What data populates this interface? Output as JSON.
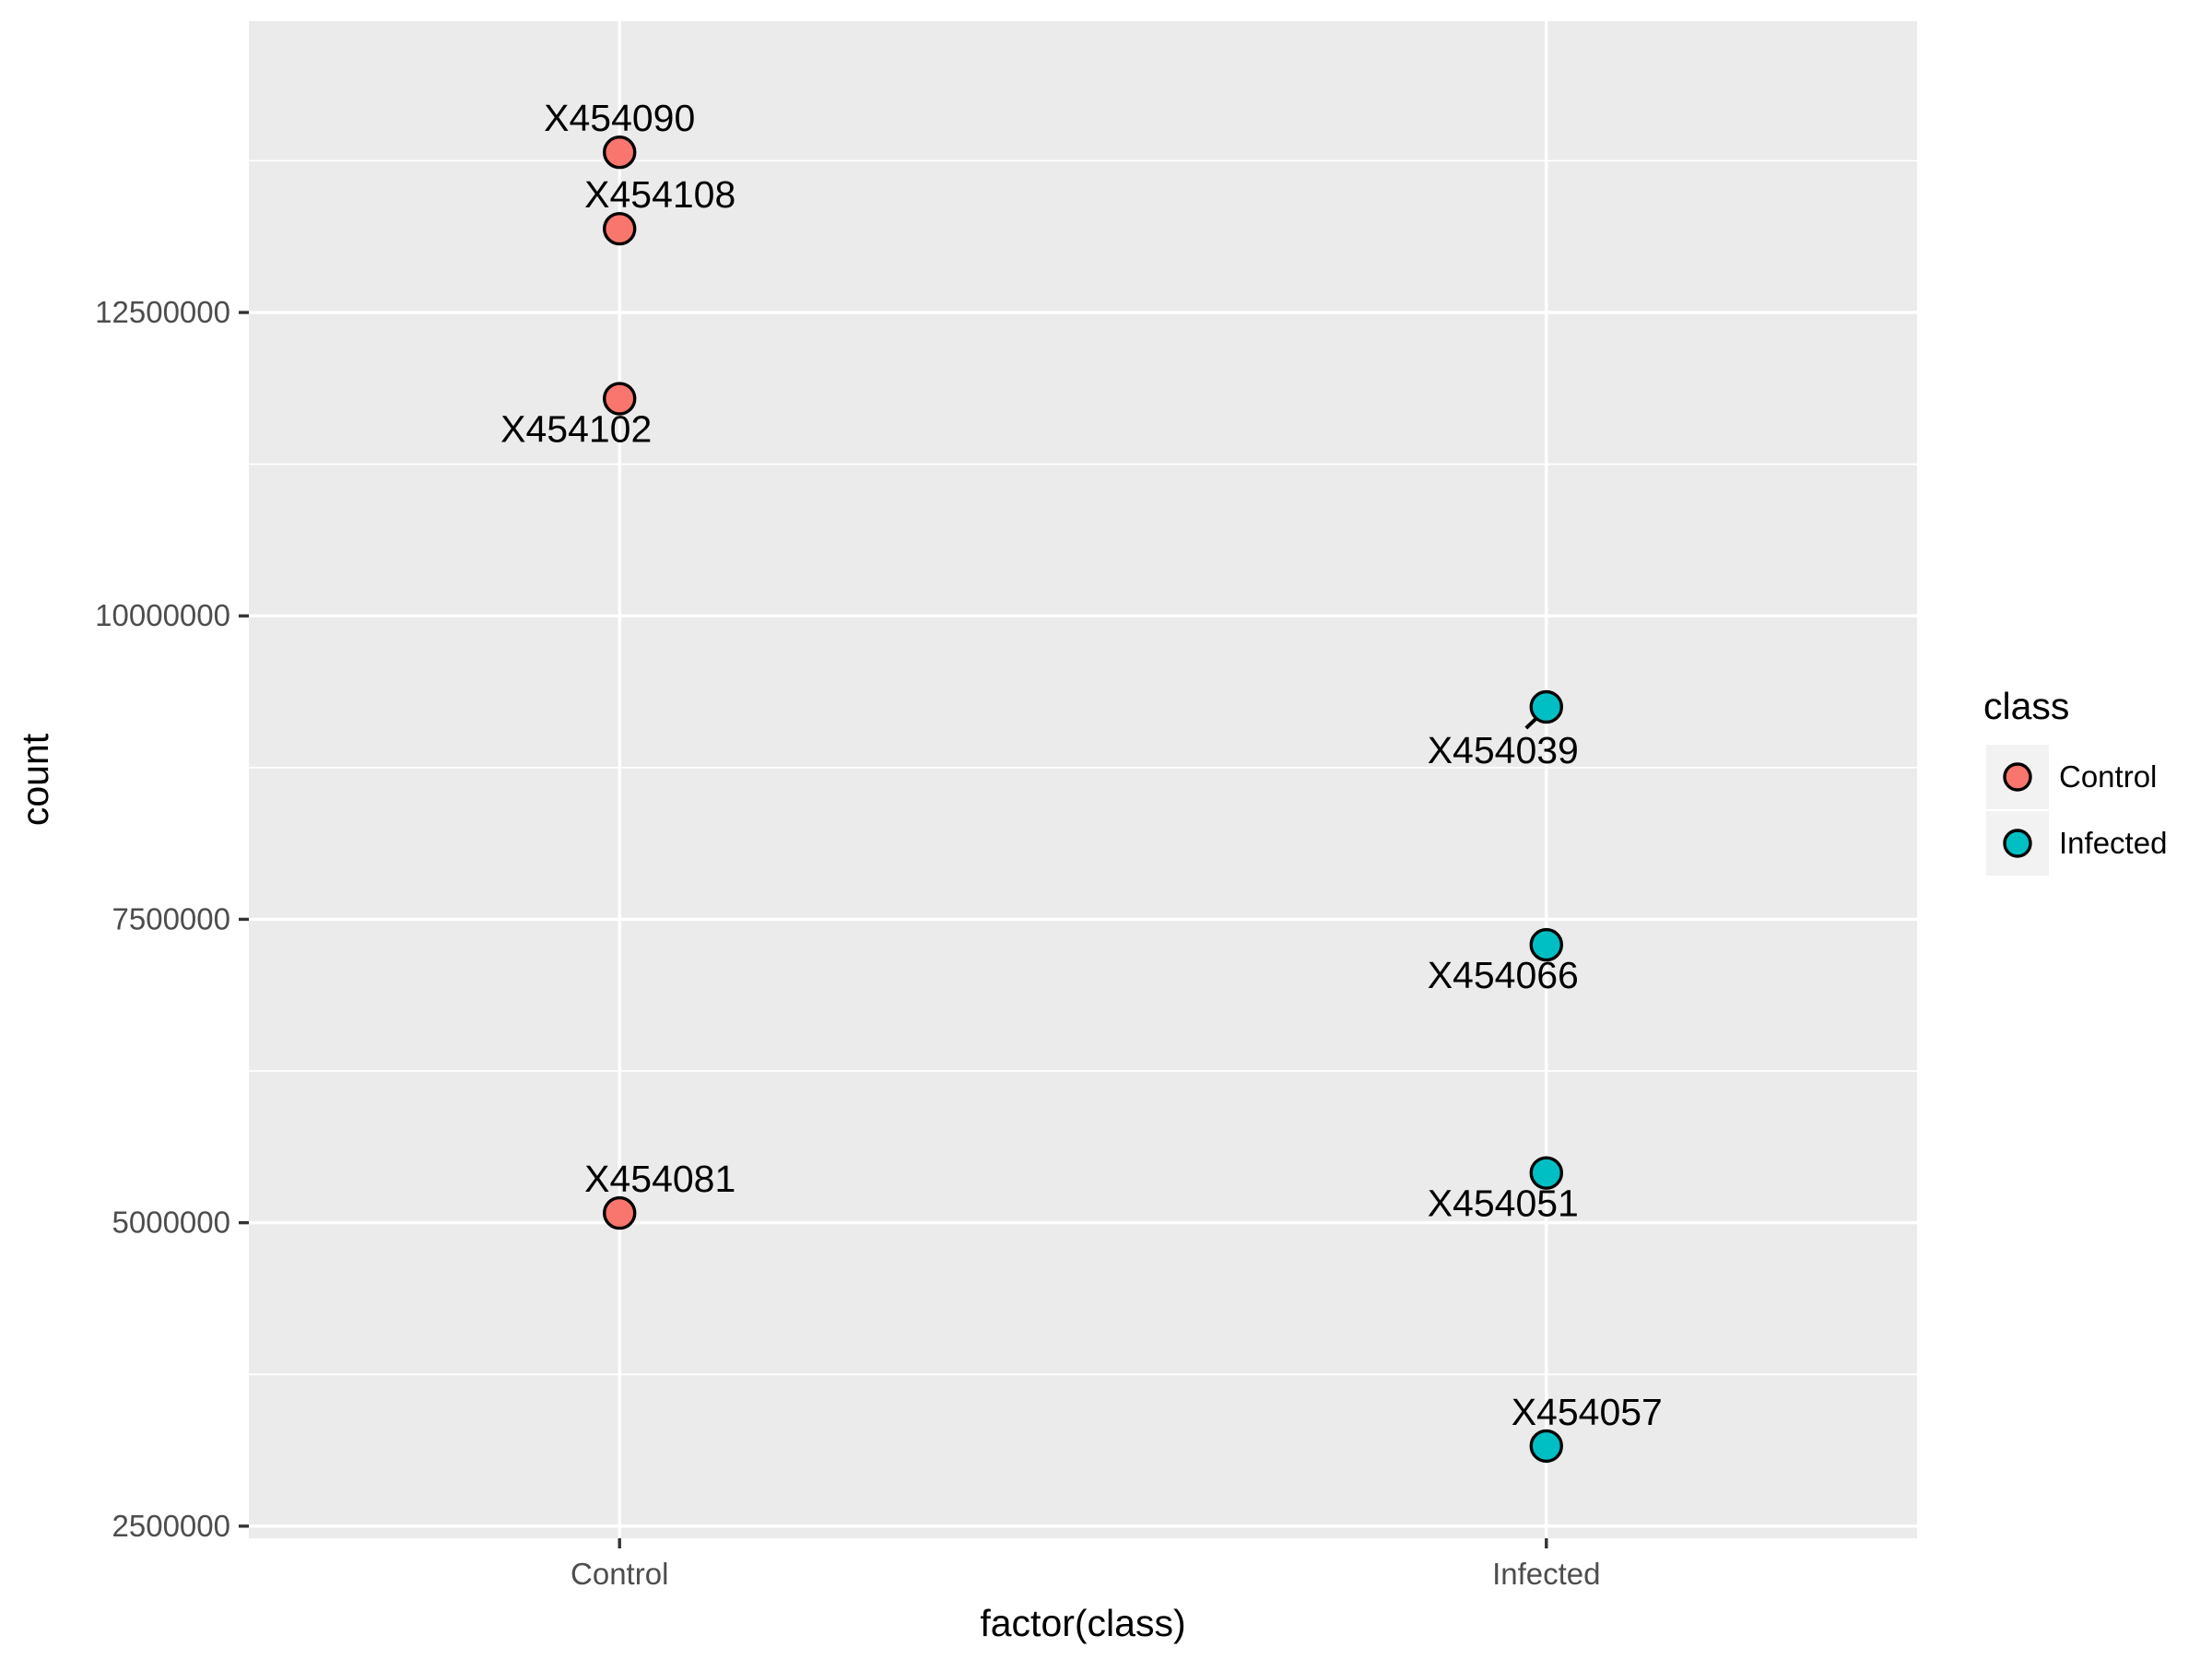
{
  "chart_data": {
    "type": "scatter",
    "xlabel": "factor(class)",
    "ylabel": "count",
    "categories": [
      "Control",
      "Infected"
    ],
    "ylim": [
      2400000,
      14900000
    ],
    "y_ticks": [
      2500000,
      5000000,
      7500000,
      10000000,
      12500000
    ],
    "y_tick_labels": [
      "2500000",
      "5000000",
      "7500000",
      "10000000",
      "12500000"
    ],
    "grid": true,
    "legend": {
      "title": "class",
      "placement": "right",
      "entries": [
        {
          "label": "Control",
          "color": "#F8766D"
        },
        {
          "label": "Infected",
          "color": "#00BFC4"
        }
      ]
    },
    "series": [
      {
        "name": "Control",
        "color": "#F8766D",
        "points": [
          {
            "x": "Control",
            "y": 13820000,
            "label": "X454090",
            "label_pos": "above"
          },
          {
            "x": "Control",
            "y": 13190000,
            "label": "X454108",
            "label_pos": "above-right"
          },
          {
            "x": "Control",
            "y": 11790000,
            "label": "X454102",
            "label_pos": "below-left"
          },
          {
            "x": "Control",
            "y": 5080000,
            "label": "X454081",
            "label_pos": "above-right"
          }
        ]
      },
      {
        "name": "Infected",
        "color": "#00BFC4",
        "points": [
          {
            "x": "Infected",
            "y": 9250000,
            "label": "X454039",
            "label_pos": "below-left",
            "leader": true
          },
          {
            "x": "Infected",
            "y": 7290000,
            "label": "X454066",
            "label_pos": "below-left"
          },
          {
            "x": "Infected",
            "y": 5410000,
            "label": "X454051",
            "label_pos": "below-left"
          },
          {
            "x": "Infected",
            "y": 3160000,
            "label": "X454057",
            "label_pos": "above-right"
          }
        ]
      }
    ]
  }
}
